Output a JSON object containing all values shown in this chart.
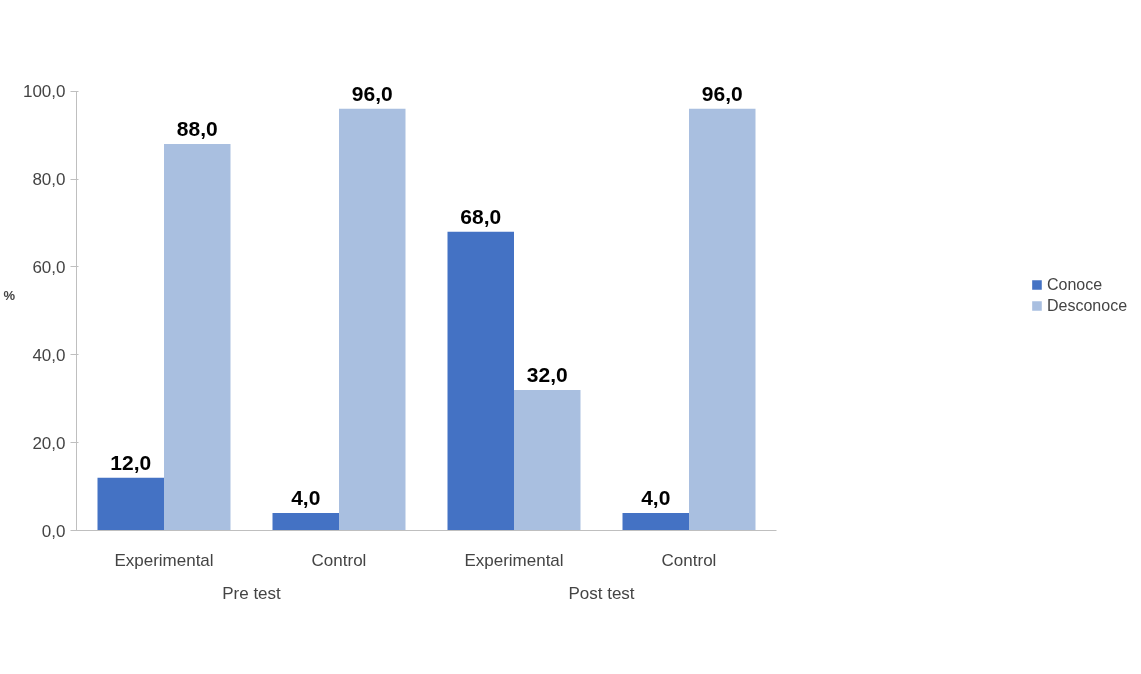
{
  "chart_data": {
    "type": "bar",
    "ylabel": "%",
    "categories": [
      "Experimental",
      "Control",
      "Experimental",
      "Control"
    ],
    "annotations": [
      "Pre test",
      "Post test"
    ],
    "series": [
      {
        "name": "Conoce",
        "color": "#4472c4",
        "values": [
          12.0,
          4.0,
          68.0,
          4.0
        ],
        "value_labels": [
          "12,0",
          "4,0",
          "68,0",
          "4,0"
        ]
      },
      {
        "name": "Desconoce",
        "color": "#a9bfe0",
        "values": [
          88.0,
          96.0,
          32.0,
          96.0
        ],
        "value_labels": [
          "88,0",
          "96,0",
          "32,0",
          "96,0"
        ]
      }
    ],
    "ylim": [
      0,
      100
    ],
    "yticks": [
      {
        "value": 0,
        "label": "0,0"
      },
      {
        "value": 20,
        "label": "20,0"
      },
      {
        "value": 40,
        "label": "40,0"
      },
      {
        "value": 60,
        "label": "60,0"
      },
      {
        "value": 80,
        "label": "80,0"
      },
      {
        "value": 100,
        "label": "100,0"
      }
    ],
    "grid": false,
    "legend": "right"
  }
}
